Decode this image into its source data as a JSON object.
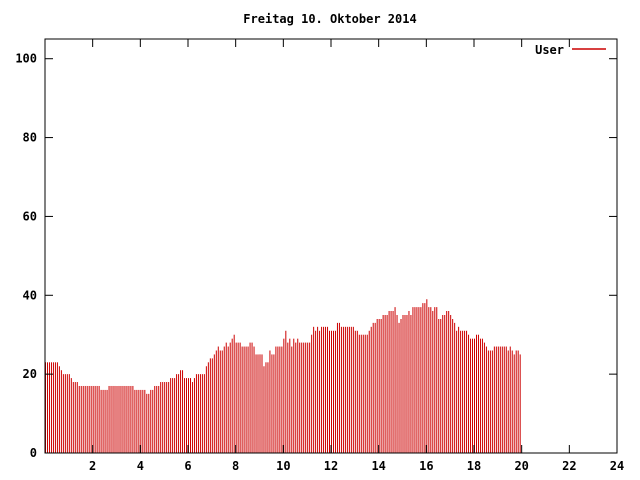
{
  "chart_data": {
    "type": "bar",
    "title": "Freitag 10. Oktober 2014",
    "xlabel": "",
    "ylabel": "",
    "xlim": [
      0,
      24
    ],
    "ylim": [
      0,
      105
    ],
    "xticks": [
      "2",
      "4",
      "6",
      "8",
      "10",
      "12",
      "14",
      "16",
      "18",
      "20",
      "22",
      "24"
    ],
    "yticks": [
      "0",
      "20",
      "40",
      "60",
      "80",
      "100"
    ],
    "grid": false,
    "legend_position": "top-right",
    "series": [
      {
        "name": "User",
        "color": "#cc0000",
        "interval_minutes": 5,
        "values": [
          23,
          23,
          23,
          23,
          23,
          23,
          23,
          22,
          21,
          20,
          20,
          20,
          20,
          19,
          18,
          18,
          18,
          17,
          17,
          17,
          17,
          17,
          17,
          17,
          17,
          17,
          17,
          17,
          16,
          16,
          16,
          16,
          17,
          17,
          17,
          17,
          17,
          17,
          17,
          17,
          17,
          17,
          17,
          17,
          17,
          16,
          16,
          16,
          16,
          16,
          16,
          15,
          15,
          16,
          16,
          17,
          17,
          17,
          18,
          18,
          18,
          18,
          18,
          19,
          19,
          19,
          20,
          20,
          21,
          21,
          19,
          19,
          19,
          19,
          18,
          19,
          20,
          20,
          20,
          20,
          20,
          22,
          23,
          24,
          24,
          25,
          26,
          27,
          26,
          26,
          27,
          28,
          27,
          28,
          29,
          30,
          28,
          28,
          28,
          27,
          27,
          27,
          27,
          28,
          28,
          27,
          25,
          25,
          25,
          25,
          22,
          23,
          23,
          26,
          25,
          25,
          27,
          27,
          27,
          27,
          29,
          31,
          28,
          29,
          27,
          29,
          28,
          29,
          28,
          28,
          28,
          28,
          28,
          28,
          30,
          32,
          31,
          32,
          31,
          32,
          32,
          32,
          32,
          31,
          31,
          31,
          31,
          33,
          33,
          32,
          32,
          32,
          32,
          32,
          32,
          32,
          31,
          31,
          30,
          30,
          30,
          30,
          30,
          31,
          32,
          33,
          33,
          34,
          34,
          34,
          35,
          35,
          35,
          36,
          36,
          36,
          37,
          35,
          33,
          34,
          35,
          35,
          35,
          36,
          35,
          37,
          37,
          37,
          37,
          37,
          38,
          38,
          39,
          37,
          37,
          36,
          37,
          37,
          34,
          34,
          35,
          35,
          36,
          36,
          35,
          34,
          33,
          31,
          32,
          31,
          31,
          31,
          31,
          30,
          29,
          29,
          29,
          30,
          30,
          29,
          29,
          28,
          27,
          26,
          26,
          26,
          27,
          27,
          27,
          27,
          27,
          27,
          27,
          26,
          27,
          26,
          25,
          26,
          26,
          25
        ]
      }
    ]
  }
}
